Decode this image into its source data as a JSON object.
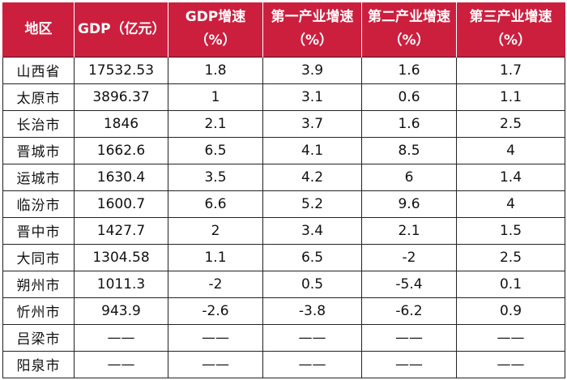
{
  "table": {
    "headers": [
      "地区",
      "GDP（亿元）",
      "GDP增速（%）",
      "第一产业增速（%）",
      "第二产业增速（%）",
      "第三产业增速（%）"
    ],
    "rows": [
      [
        "山西省",
        "17532.53",
        "1.8",
        "3.9",
        "1.6",
        "1.7"
      ],
      [
        "太原市",
        "3896.37",
        "1",
        "3.1",
        "0.6",
        "1.1"
      ],
      [
        "长治市",
        "1846",
        "2.1",
        "3.7",
        "1.6",
        "2.5"
      ],
      [
        "晋城市",
        "1662.6",
        "6.5",
        "4.1",
        "8.5",
        "4"
      ],
      [
        "运城市",
        "1630.4",
        "3.5",
        "4.2",
        "6",
        "1.4"
      ],
      [
        "临汾市",
        "1600.7",
        "6.6",
        "5.2",
        "9.6",
        "4"
      ],
      [
        "晋中市",
        "1427.7",
        "2",
        "3.4",
        "2.1",
        "1.5"
      ],
      [
        "大同市",
        "1304.58",
        "1.1",
        "6.5",
        "-2",
        "2.5"
      ],
      [
        "朔州市",
        "1011.3",
        "-2",
        "0.5",
        "-5.4",
        "0.1"
      ],
      [
        "忻州市",
        "943.9",
        "-2.6",
        "-3.8",
        "-6.2",
        "0.9"
      ],
      [
        "吕梁市",
        "——",
        "——",
        "——",
        "——",
        "——"
      ],
      [
        "阳泉市",
        "——",
        "——",
        "——",
        "——",
        "——"
      ]
    ]
  },
  "colors": {
    "header_background": "#cc1f3e",
    "header_text": "#ffffff",
    "border": "#222222"
  }
}
